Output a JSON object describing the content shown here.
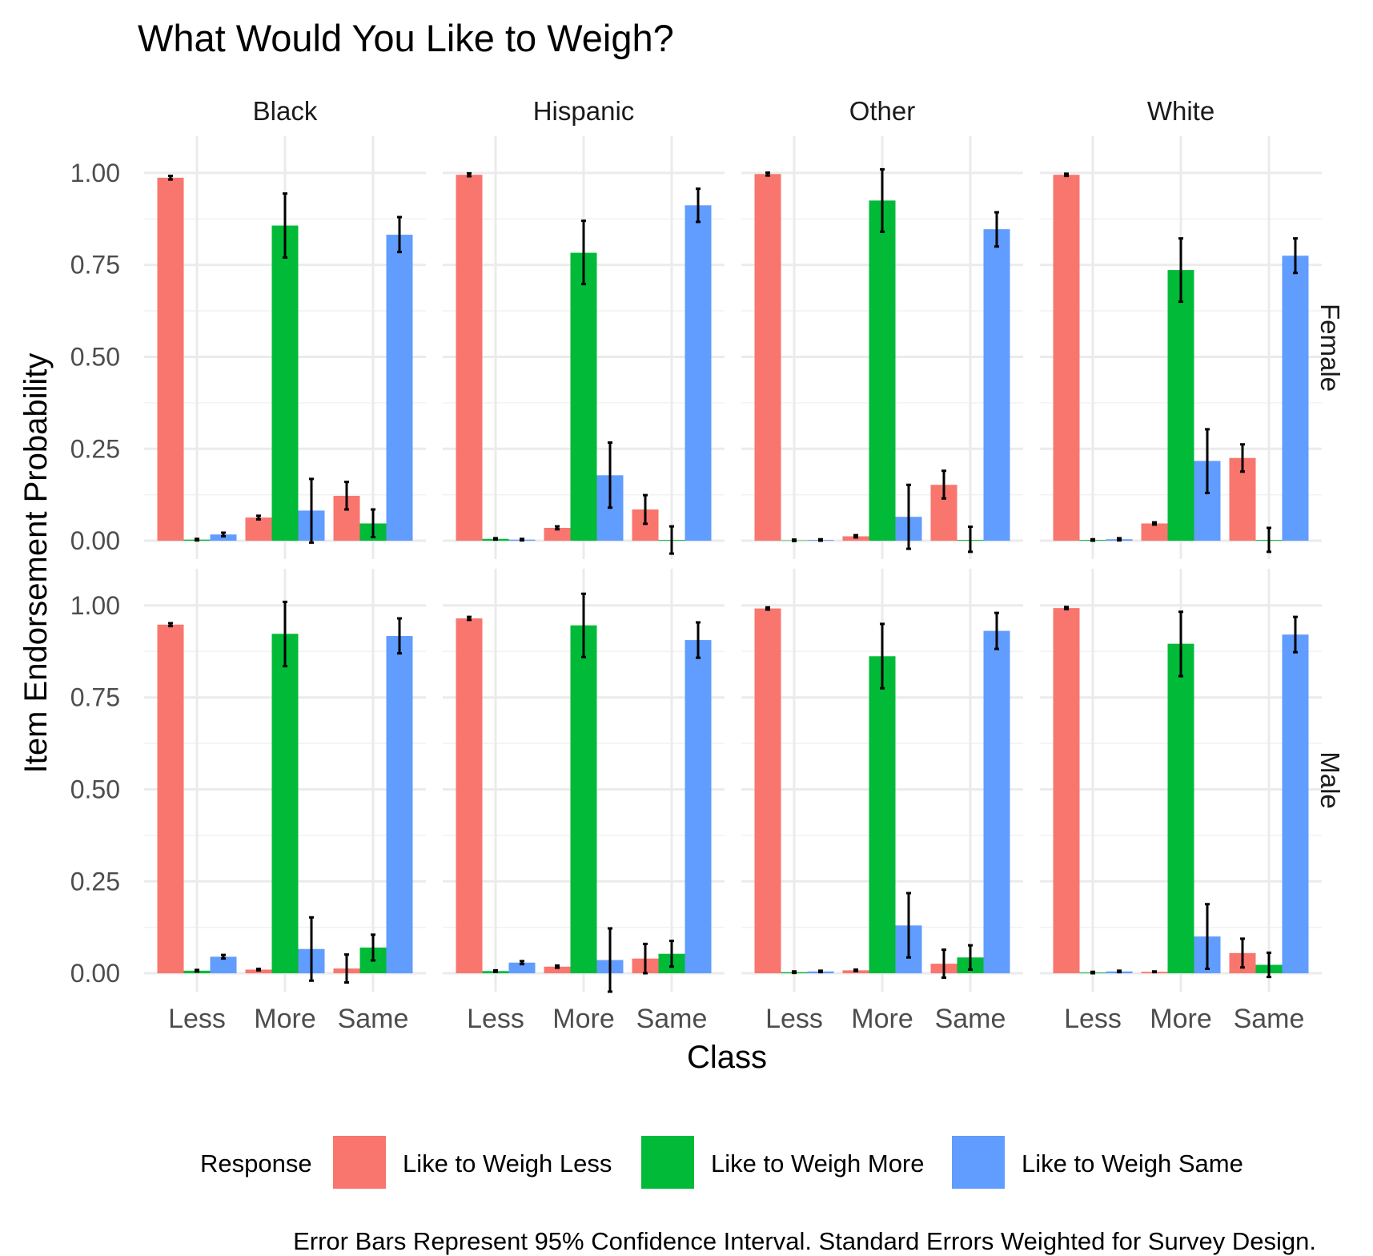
{
  "chart_data": {
    "type": "bar",
    "title": "What Would You Like to Weigh?",
    "xlabel": "Class",
    "ylabel": "Item Endorsement Probability",
    "caption": "Error Bars Represent 95% Confidence Interval. Standard Errors Weighted for Survey Design.",
    "ylim": [
      0,
      1.1
    ],
    "y_ticks": [
      "0.00",
      "0.25",
      "0.50",
      "0.75",
      "1.00"
    ],
    "y_tick_values": [
      0,
      0.25,
      0.5,
      0.75,
      1.0
    ],
    "categories": [
      "Less",
      "More",
      "Same"
    ],
    "facet_columns": [
      "Black",
      "Hispanic",
      "Other",
      "White"
    ],
    "facet_rows": [
      "Female",
      "Male"
    ],
    "grid": true,
    "legend": {
      "title": "Response",
      "position": "bottom",
      "entries": [
        {
          "label": "Like to Weigh Less",
          "color": "#F8766D"
        },
        {
          "label": "Like to Weigh More",
          "color": "#00BA38"
        },
        {
          "label": "Like to Weigh Same",
          "color": "#619CFF"
        }
      ]
    },
    "panels": [
      {
        "row": "Female",
        "column": "Black",
        "values": [
          [
            0.987,
            0.003,
            0.017
          ],
          [
            0.063,
            0.857,
            0.082
          ],
          [
            0.122,
            0.047,
            0.832
          ]
        ],
        "lower": [
          [
            0.982,
            0.001,
            0.012
          ],
          [
            0.058,
            0.77,
            -0.005
          ],
          [
            0.085,
            0.01,
            0.785
          ]
        ],
        "upper": [
          [
            0.992,
            0.005,
            0.022
          ],
          [
            0.068,
            0.944,
            0.168
          ],
          [
            0.16,
            0.085,
            0.88
          ]
        ]
      },
      {
        "row": "Female",
        "column": "Hispanic",
        "values": [
          [
            0.995,
            0.005,
            0.003
          ],
          [
            0.035,
            0.783,
            0.178
          ],
          [
            0.085,
            0.002,
            0.912
          ]
        ],
        "lower": [
          [
            0.991,
            0.003,
            0.001
          ],
          [
            0.031,
            0.698,
            0.09
          ],
          [
            0.046,
            -0.035,
            0.867
          ]
        ],
        "upper": [
          [
            0.999,
            0.007,
            0.005
          ],
          [
            0.039,
            0.87,
            0.267
          ],
          [
            0.124,
            0.039,
            0.957
          ]
        ]
      },
      {
        "row": "Female",
        "column": "Other",
        "values": [
          [
            0.997,
            0.001,
            0.002
          ],
          [
            0.012,
            0.925,
            0.065
          ],
          [
            0.152,
            0.002,
            0.847
          ]
        ],
        "lower": [
          [
            0.993,
            -0.001,
            0.0
          ],
          [
            0.009,
            0.84,
            -0.022
          ],
          [
            0.115,
            -0.03,
            0.8
          ]
        ],
        "upper": [
          [
            1.001,
            0.003,
            0.004
          ],
          [
            0.015,
            1.01,
            0.152
          ],
          [
            0.19,
            0.038,
            0.893
          ]
        ]
      },
      {
        "row": "Female",
        "column": "White",
        "values": [
          [
            0.995,
            0.002,
            0.004
          ],
          [
            0.047,
            0.736,
            0.217
          ],
          [
            0.225,
            0.002,
            0.775
          ]
        ],
        "lower": [
          [
            0.992,
            0.0,
            0.001
          ],
          [
            0.044,
            0.65,
            0.13
          ],
          [
            0.188,
            -0.03,
            0.728
          ]
        ],
        "upper": [
          [
            0.998,
            0.004,
            0.007
          ],
          [
            0.05,
            0.822,
            0.303
          ],
          [
            0.262,
            0.035,
            0.822
          ]
        ]
      },
      {
        "row": "Male",
        "column": "Black",
        "values": [
          [
            0.948,
            0.007,
            0.045
          ],
          [
            0.01,
            0.923,
            0.066
          ],
          [
            0.013,
            0.07,
            0.917
          ]
        ],
        "lower": [
          [
            0.944,
            0.005,
            0.04
          ],
          [
            0.008,
            0.835,
            -0.02
          ],
          [
            -0.025,
            0.035,
            0.87
          ]
        ],
        "upper": [
          [
            0.952,
            0.009,
            0.05
          ],
          [
            0.012,
            1.01,
            0.152
          ],
          [
            0.051,
            0.105,
            0.965
          ]
        ]
      },
      {
        "row": "Male",
        "column": "Hispanic",
        "values": [
          [
            0.965,
            0.006,
            0.029
          ],
          [
            0.018,
            0.946,
            0.036
          ],
          [
            0.04,
            0.053,
            0.906
          ]
        ],
        "lower": [
          [
            0.961,
            0.004,
            0.025
          ],
          [
            0.015,
            0.86,
            -0.05
          ],
          [
            0.0,
            0.018,
            0.858
          ]
        ],
        "upper": [
          [
            0.969,
            0.008,
            0.033
          ],
          [
            0.021,
            1.032,
            0.122
          ],
          [
            0.08,
            0.088,
            0.954
          ]
        ]
      },
      {
        "row": "Male",
        "column": "Other",
        "values": [
          [
            0.992,
            0.003,
            0.005
          ],
          [
            0.008,
            0.862,
            0.13
          ],
          [
            0.026,
            0.043,
            0.931
          ]
        ],
        "lower": [
          [
            0.989,
            0.001,
            0.003
          ],
          [
            0.006,
            0.775,
            0.043
          ],
          [
            -0.012,
            0.01,
            0.882
          ]
        ],
        "upper": [
          [
            0.995,
            0.005,
            0.007
          ],
          [
            0.01,
            0.95,
            0.218
          ],
          [
            0.064,
            0.076,
            0.98
          ]
        ]
      },
      {
        "row": "Male",
        "column": "White",
        "values": [
          [
            0.993,
            0.002,
            0.005
          ],
          [
            0.004,
            0.896,
            0.1
          ],
          [
            0.055,
            0.023,
            0.921
          ]
        ],
        "lower": [
          [
            0.99,
            0.0,
            0.003
          ],
          [
            0.003,
            0.808,
            0.012
          ],
          [
            0.016,
            -0.01,
            0.873
          ]
        ],
        "upper": [
          [
            0.996,
            0.004,
            0.007
          ],
          [
            0.005,
            0.983,
            0.188
          ],
          [
            0.094,
            0.056,
            0.969
          ]
        ]
      }
    ]
  }
}
